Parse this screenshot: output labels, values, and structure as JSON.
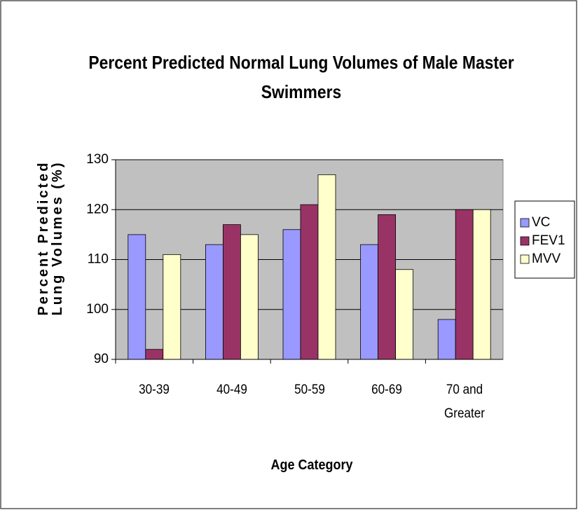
{
  "chart_data": {
    "type": "bar",
    "title": "Percent Predicted Normal Lung Volumes of Male Master Swimmers",
    "x_label": "Age Category",
    "y_label": "Percent Predicted Lung Volumes (%)",
    "categories": [
      "30-39",
      "40-49",
      "50-59",
      "60-69",
      "70 and Greater"
    ],
    "series": [
      {
        "name": "VC",
        "color": "#9999ff",
        "values": [
          115,
          113,
          116,
          113,
          98
        ]
      },
      {
        "name": "FEV1",
        "color": "#993366",
        "values": [
          92,
          117,
          121,
          119,
          120
        ]
      },
      {
        "name": "MVV",
        "color": "#ffffcc",
        "values": [
          111,
          115,
          127,
          108,
          120
        ]
      }
    ],
    "ylim": [
      90,
      130
    ],
    "yticks": [
      90,
      100,
      110,
      120,
      130
    ],
    "grid": true,
    "legend": "right"
  }
}
